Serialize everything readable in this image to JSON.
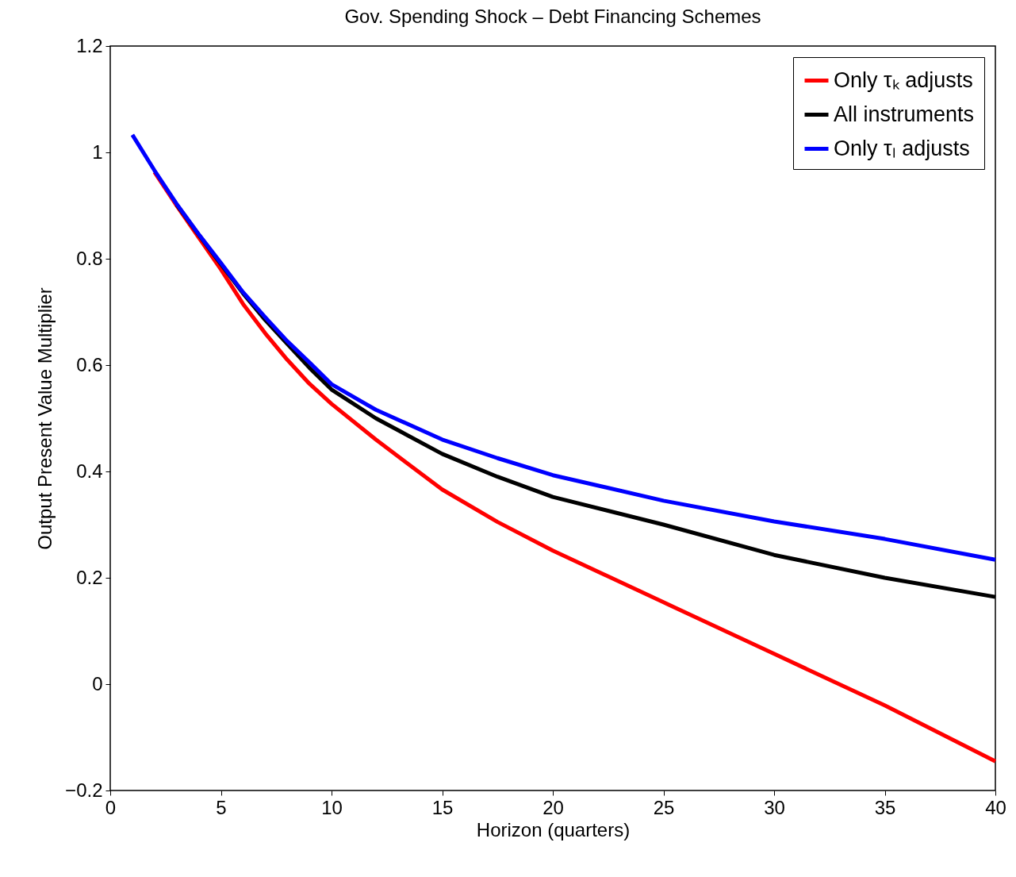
{
  "chart_data": {
    "type": "line",
    "title": "Gov. Spending Shock – Debt Financing Schemes",
    "xlabel": "Horizon (quarters)",
    "ylabel": "Output Present Value Multiplier",
    "x": [
      1,
      2,
      3,
      4,
      5,
      6,
      7,
      8,
      9,
      10,
      12,
      15,
      17.5,
      20,
      25,
      30,
      35,
      40
    ],
    "series": [
      {
        "name": "Only τₖ adjusts",
        "color": "#ff0000",
        "values": [
          null,
          0.963,
          0.9,
          0.84,
          0.78,
          0.715,
          0.66,
          0.61,
          0.565,
          0.527,
          0.46,
          0.366,
          0.305,
          0.251,
          0.154,
          0.057,
          -0.04,
          -0.145
        ]
      },
      {
        "name": "All instruments",
        "color": "#000000",
        "values": [
          null,
          null,
          0.902,
          0.845,
          0.79,
          0.735,
          0.685,
          0.64,
          0.595,
          0.554,
          0.5,
          0.433,
          0.39,
          0.352,
          0.3,
          0.243,
          0.2,
          0.164
        ]
      },
      {
        "name": "Only τₗ adjusts",
        "color": "#0000ff",
        "values": [
          1.033,
          0.966,
          0.903,
          0.846,
          0.792,
          0.737,
          0.69,
          0.645,
          0.605,
          0.564,
          0.516,
          0.46,
          0.425,
          0.393,
          0.345,
          0.306,
          0.273,
          0.234
        ]
      }
    ],
    "xlim": [
      0,
      40
    ],
    "xticks": [
      0,
      5,
      10,
      15,
      20,
      25,
      30,
      35,
      40
    ],
    "ylim": [
      -0.2,
      1.2
    ],
    "yticks": [
      {
        "value": -0.2,
        "label": "−0.2"
      },
      0,
      0.2,
      0.4,
      0.6,
      0.8,
      1,
      1.2
    ],
    "grid": false,
    "legend": "top right",
    "line_style": "solid",
    "marker": "none"
  }
}
